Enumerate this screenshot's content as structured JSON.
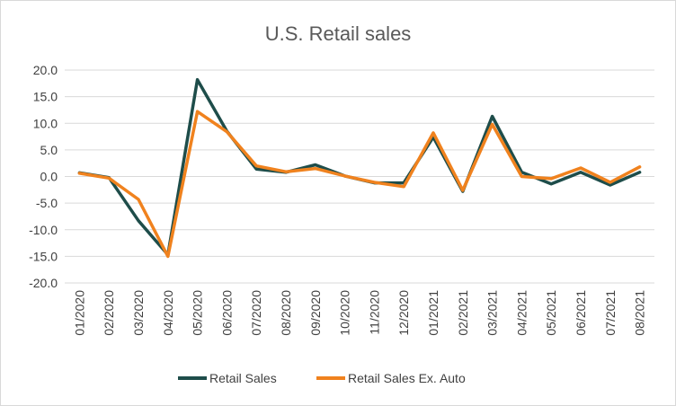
{
  "chart_data": {
    "type": "line",
    "title": "U.S. Retail sales",
    "xlabel": "",
    "ylabel": "",
    "categories": [
      "01/2020",
      "02/2020",
      "03/2020",
      "04/2020",
      "05/2020",
      "06/2020",
      "07/2020",
      "08/2020",
      "09/2020",
      "10/2020",
      "11/2020",
      "12/2020",
      "01/2021",
      "02/2021",
      "03/2021",
      "04/2021",
      "05/2021",
      "06/2021",
      "07/2021",
      "08/2021"
    ],
    "ylim": [
      -20,
      20
    ],
    "yticks": [
      "20.0",
      "15.0",
      "10.0",
      "5.0",
      "0.0",
      "-5.0",
      "-10.0",
      "-15.0",
      "-20.0"
    ],
    "yticks_values": [
      20,
      15,
      10,
      5,
      0,
      -5,
      -10,
      -15,
      -20
    ],
    "grid": true,
    "legend_position": "bottom",
    "series": [
      {
        "name": "Retail Sales",
        "color": "#1e4d4a",
        "values": [
          0.7,
          -0.2,
          -8.3,
          -14.7,
          18.2,
          8.5,
          1.4,
          0.8,
          2.2,
          0.1,
          -1.2,
          -1.2,
          7.4,
          -2.8,
          11.3,
          0.8,
          -1.4,
          0.8,
          -1.6,
          0.8
        ]
      },
      {
        "name": "Retail Sales Ex. Auto",
        "color": "#f0821e",
        "values": [
          0.6,
          -0.3,
          -4.3,
          -15.0,
          12.2,
          8.4,
          2.0,
          0.9,
          1.5,
          0.1,
          -1.1,
          -1.9,
          8.2,
          -2.6,
          9.8,
          0.0,
          -0.4,
          1.6,
          -1.1,
          1.8
        ]
      }
    ]
  }
}
